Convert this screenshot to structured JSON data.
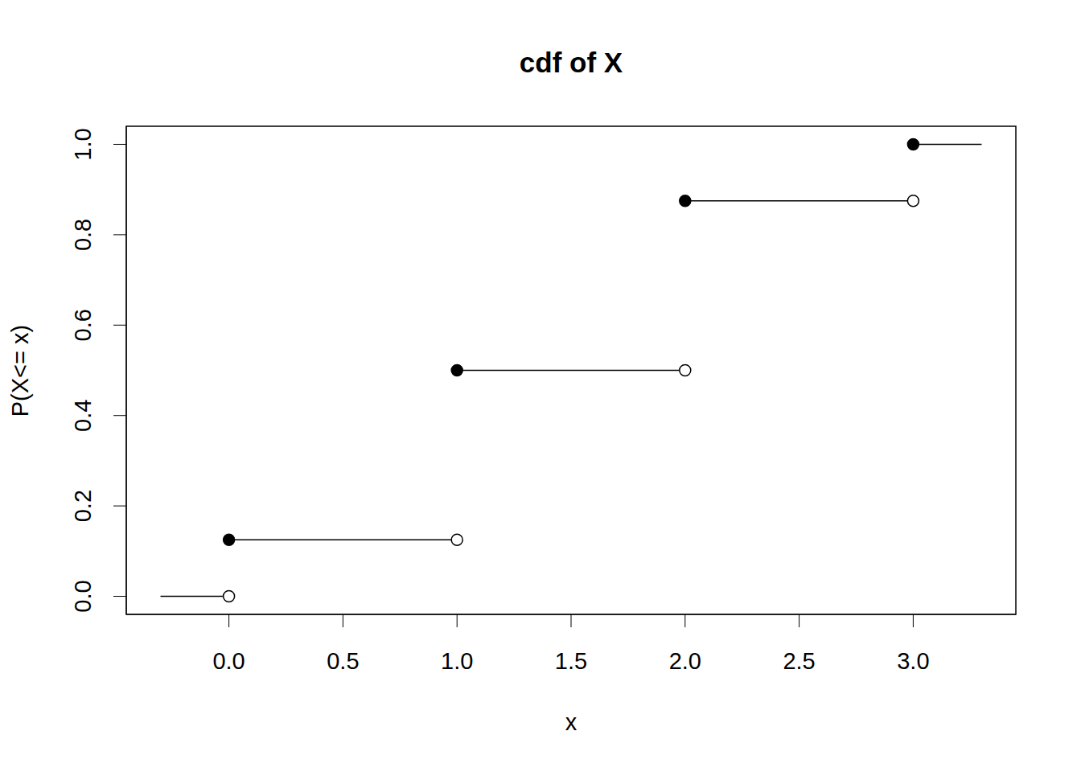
{
  "chart_data": {
    "type": "step",
    "title": "cdf of X",
    "x_label": "x",
    "y_label": "P(X<= x)",
    "x_start": [
      -0.3,
      0,
      1,
      2,
      3
    ],
    "x_end": [
      0,
      1,
      2,
      3,
      3.3
    ],
    "values": [
      0,
      0.125,
      0.5,
      0.875,
      1
    ],
    "color": "#000000",
    "xlim": [
      -0.45,
      3.45
    ],
    "ylim": [
      -0.04,
      1.04
    ],
    "xticks": [
      {
        "value": 0,
        "label": "0.0"
      },
      {
        "value": 0.5,
        "label": "0.5"
      },
      {
        "value": 1,
        "label": "1.0"
      },
      {
        "value": 1.5,
        "label": "1.5"
      },
      {
        "value": 2,
        "label": "2.0"
      },
      {
        "value": 2.5,
        "label": "2.5"
      },
      {
        "value": 3,
        "label": "3.0"
      }
    ],
    "yticks": [
      {
        "value": 0,
        "label": "0.0"
      },
      {
        "value": 0.2,
        "label": "0.2"
      },
      {
        "value": 0.4,
        "label": "0.4"
      },
      {
        "value": 0.6,
        "label": "0.6"
      },
      {
        "value": 0.8,
        "label": "0.8"
      },
      {
        "value": 1,
        "label": "1.0"
      }
    ],
    "grid": false
  }
}
